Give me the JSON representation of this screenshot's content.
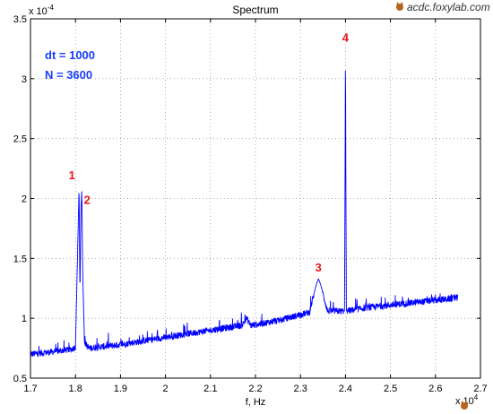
{
  "chart_data": {
    "type": "line",
    "title": "Spectrum",
    "xlabel": "f, Hz",
    "ylabel": "",
    "x_exponent": "x 10",
    "x_exponent_power": "4",
    "y_exponent": "x 10",
    "y_exponent_power": "-4",
    "xlim": [
      1.7,
      2.7
    ],
    "ylim": [
      0.5,
      3.5
    ],
    "grid": true,
    "x_ticks": [
      "1.7",
      "1.8",
      "1.9",
      "2",
      "2.1",
      "2.2",
      "2.3",
      "2.4",
      "2.5",
      "2.6",
      "2.7"
    ],
    "y_ticks": [
      "0.5",
      "1",
      "1.5",
      "2",
      "2.5",
      "3",
      "3.5"
    ],
    "params": [
      "dt = 1000",
      "N = 3600"
    ],
    "peaks": [
      {
        "label": "1",
        "x": 1.808,
        "y": 2.1
      },
      {
        "label": "2",
        "x": 1.814,
        "y": 2.06
      },
      {
        "label": "3",
        "x": 2.34,
        "y": 1.33
      },
      {
        "label": "4",
        "x": 2.4,
        "y": 3.25
      }
    ],
    "series": [
      {
        "color": "#0000ff",
        "x": [
          1.7,
          1.75,
          1.79,
          1.8,
          1.805,
          1.808,
          1.81,
          1.812,
          1.814,
          1.816,
          1.82,
          1.83,
          1.9,
          2.0,
          2.1,
          2.17,
          2.18,
          2.19,
          2.25,
          2.32,
          2.335,
          2.34,
          2.345,
          2.36,
          2.398,
          2.4,
          2.402,
          2.45,
          2.5,
          2.55,
          2.6,
          2.65
        ],
        "y": [
          0.7,
          0.72,
          0.74,
          0.76,
          1.6,
          2.1,
          1.2,
          1.9,
          2.06,
          1.4,
          0.8,
          0.75,
          0.78,
          0.84,
          0.9,
          0.94,
          1.0,
          0.94,
          0.98,
          1.05,
          1.28,
          1.33,
          1.28,
          1.06,
          1.06,
          3.25,
          1.06,
          1.09,
          1.11,
          1.13,
          1.15,
          1.17
        ]
      }
    ]
  },
  "watermark": "acdc.foxylab.com",
  "icon": "fox-icon"
}
